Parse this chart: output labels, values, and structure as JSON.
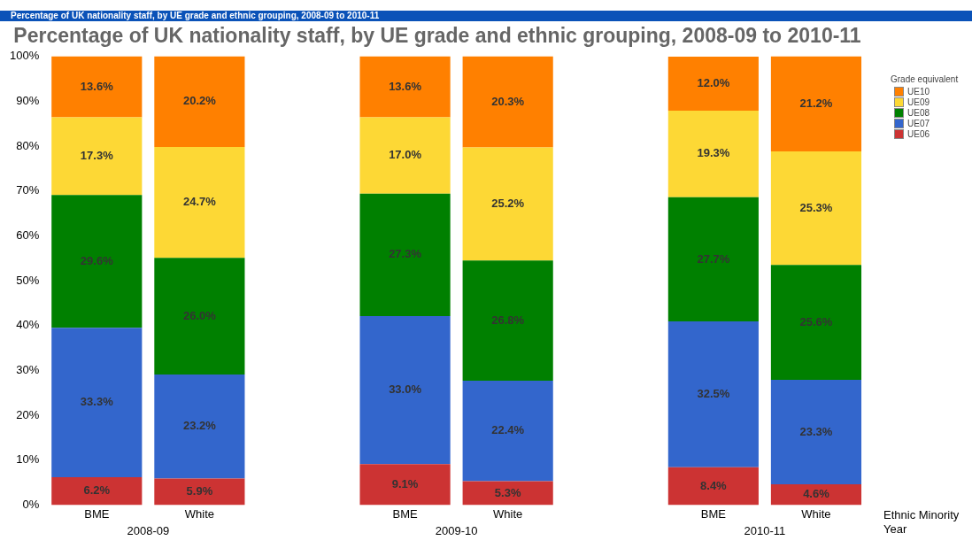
{
  "chart_data": {
    "type": "bar",
    "title": "Percentage of UK nationality staff, by UE grade and ethnic grouping, 2008-09 to 2010-11",
    "xlabel": "Ethnic Minority",
    "legend_title": "Grade equivalent",
    "stacked": true,
    "legend": "top right",
    "grid": false,
    "categories": [
      "BME",
      "White",
      null,
      "BME",
      "White",
      null,
      "BME",
      "White"
    ],
    "series": [
      {
        "name": "UE06",
        "color": "#cc3333",
        "values": [
          6.2,
          5.9,
          null,
          9.1,
          5.3,
          null,
          8.4,
          4.6
        ],
        "value_labels": [
          "6.2%",
          "5.9%",
          null,
          "9.1%",
          "5.3%",
          null,
          "8.4%",
          "4.6%"
        ]
      },
      {
        "name": "UE07",
        "color": "#3366cc",
        "values": [
          33.3,
          23.2,
          null,
          33.0,
          22.4,
          null,
          32.5,
          23.3
        ],
        "value_labels": [
          "33.3%",
          "23.2%",
          null,
          "33.0%",
          "22.4%",
          null,
          "32.5%",
          "23.3%"
        ]
      },
      {
        "name": "UE08",
        "color": "#008000",
        "values": [
          29.6,
          26.0,
          null,
          27.3,
          26.8,
          null,
          27.7,
          25.6
        ],
        "value_labels": [
          "29.6%",
          "26.0%",
          null,
          "27.3%",
          "26.8%",
          null,
          "27.7%",
          "25.6%"
        ]
      },
      {
        "name": "UE09",
        "color": "#fdd835",
        "values": [
          17.3,
          24.7,
          null,
          17.0,
          25.2,
          null,
          19.3,
          25.3
        ],
        "value_labels": [
          "17.3%",
          "24.7%",
          null,
          "17.0%",
          "25.2%",
          null,
          "19.3%",
          "25.3%"
        ]
      },
      {
        "name": "UE10",
        "color": "#ff8000",
        "values": [
          13.6,
          20.2,
          null,
          13.6,
          20.3,
          null,
          12.0,
          21.2
        ],
        "value_labels": [
          "13.6%",
          "20.2%",
          null,
          "13.6%",
          "20.3%",
          null,
          "12.0%",
          "21.2%"
        ]
      }
    ],
    "ylim": [
      0,
      100
    ],
    "yticks": [
      {
        "value": 0,
        "label": "0%"
      },
      {
        "value": 10,
        "label": "10%"
      },
      {
        "value": 20,
        "label": "20%"
      },
      {
        "value": 30,
        "label": "30%"
      },
      {
        "value": 40,
        "label": "40%"
      },
      {
        "value": 50,
        "label": "50%"
      },
      {
        "value": 60,
        "label": "60%"
      },
      {
        "value": 70,
        "label": "70%"
      },
      {
        "value": 80,
        "label": "80%"
      },
      {
        "value": 90,
        "label": "90%"
      },
      {
        "value": 100,
        "label": "100%"
      }
    ],
    "annotations": [
      "Percentage of UK nationality staff, by UE grade and ethnic grouping, 2008-09 to 2010-11",
      "2008-09",
      "2009-10",
      "2010-11",
      "Year"
    ]
  }
}
